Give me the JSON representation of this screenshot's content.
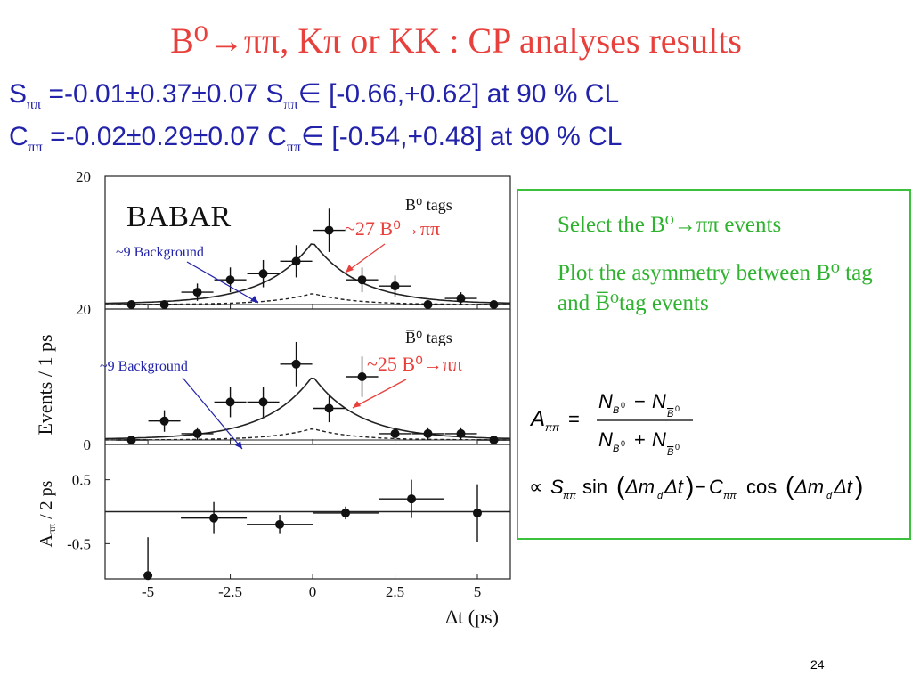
{
  "slide": {
    "title": "B⁰→ππ, Kπ or KK : CP analyses results",
    "s_line": {
      "prefix": "S",
      "sub": "ππ",
      "text1": " =-0.01±0.37±0.07 S",
      "text2": "∈ [-0.66,+0.62] at 90 % CL"
    },
    "c_line": {
      "prefix": "C",
      "sub": "ππ",
      "text1": " =-0.02±0.29±0.07 C",
      "text2": "∈ [-0.54,+0.48] at 90 % CL"
    },
    "page_number": "24"
  },
  "box": {
    "text1": "Select the B⁰→ππ events",
    "text2": "Plot the asymmetry between B⁰ tag and B̅⁰tag events",
    "formula": {
      "lhs": "A",
      "lhs_sub": "ππ",
      "num": "N",
      "num_sub1": "B",
      "num_sup1": "0",
      "minus": "−",
      "plus": "+",
      "eq": "=",
      "prop": "∝",
      "S": "S",
      "C": "C",
      "sin": "sin",
      "cos": "cos",
      "arg": "Δm",
      "arg_sub": "d",
      "arg2": "Δt"
    }
  },
  "chart_data": {
    "type": "scatter",
    "logo": "BABAR",
    "ylabel_top": "Events / 1 ps",
    "ylabel_bottom": "A",
    "ylabel_bottom_sub": "ππ",
    "ylabel_bottom_suffix": " / 2 ps",
    "xlabel": "Δt (ps)",
    "x_ticks": [
      "-5",
      "-2.5",
      "0",
      "2.5",
      "5"
    ],
    "x_tick_values": [
      -5,
      -2.5,
      0,
      2.5,
      5
    ],
    "xlim": [
      -6.3,
      6
    ],
    "panels": [
      {
        "name": "B0 tags",
        "label": "B⁰ tags",
        "ylim": [
          0,
          20
        ],
        "y_ticks": [
          "20",
          "20"
        ],
        "annotation_signal": "~27 B⁰→ππ",
        "annotation_background": "~9 Background",
        "points_x": [
          -5.5,
          -4.5,
          -3.5,
          -2.5,
          -1.5,
          -0.5,
          0.5,
          1.5,
          2.5,
          3.5,
          4.5,
          5.5
        ],
        "points_y": [
          0,
          0,
          2,
          4,
          5,
          7,
          12,
          4,
          3,
          0,
          1,
          0
        ],
        "points_err": [
          0,
          0,
          1.4,
          2.0,
          2.2,
          2.6,
          3.5,
          2.0,
          1.7,
          0,
          1.0,
          0
        ]
      },
      {
        "name": "B0bar tags",
        "label": "B̅⁰ tags",
        "ylim": [
          0,
          20
        ],
        "y_ticks": [
          "0"
        ],
        "annotation_signal": "~25 B⁰→ππ",
        "annotation_background": "~9 Background",
        "points_x": [
          -5.5,
          -4.5,
          -3.5,
          -2.5,
          -1.5,
          -0.5,
          0.5,
          1.5,
          2.5,
          3.5,
          4.5,
          5.5
        ],
        "points_y": [
          0,
          3,
          1,
          6,
          6,
          12,
          5,
          10,
          1,
          1,
          1,
          0
        ],
        "points_err": [
          0,
          1.7,
          1.0,
          2.4,
          2.4,
          3.5,
          2.2,
          3.2,
          1.0,
          1.0,
          1.0,
          0
        ]
      },
      {
        "name": "Asymmetry",
        "label": "",
        "ylim": [
          -1,
          1
        ],
        "y_ticks": [
          "0.5",
          "-0.5"
        ],
        "y_tick_values": [
          0.5,
          -0.5
        ],
        "points_x": [
          -5,
          -3,
          -1,
          1,
          3,
          5
        ],
        "points_y": [
          -1.0,
          -0.1,
          -0.2,
          -0.02,
          0.2,
          -0.02
        ],
        "points_xerr": [
          0,
          1,
          1,
          1,
          1,
          0
        ],
        "points_yerr": [
          0.6,
          0.25,
          0.15,
          0.1,
          0.3,
          0.45
        ]
      }
    ]
  }
}
